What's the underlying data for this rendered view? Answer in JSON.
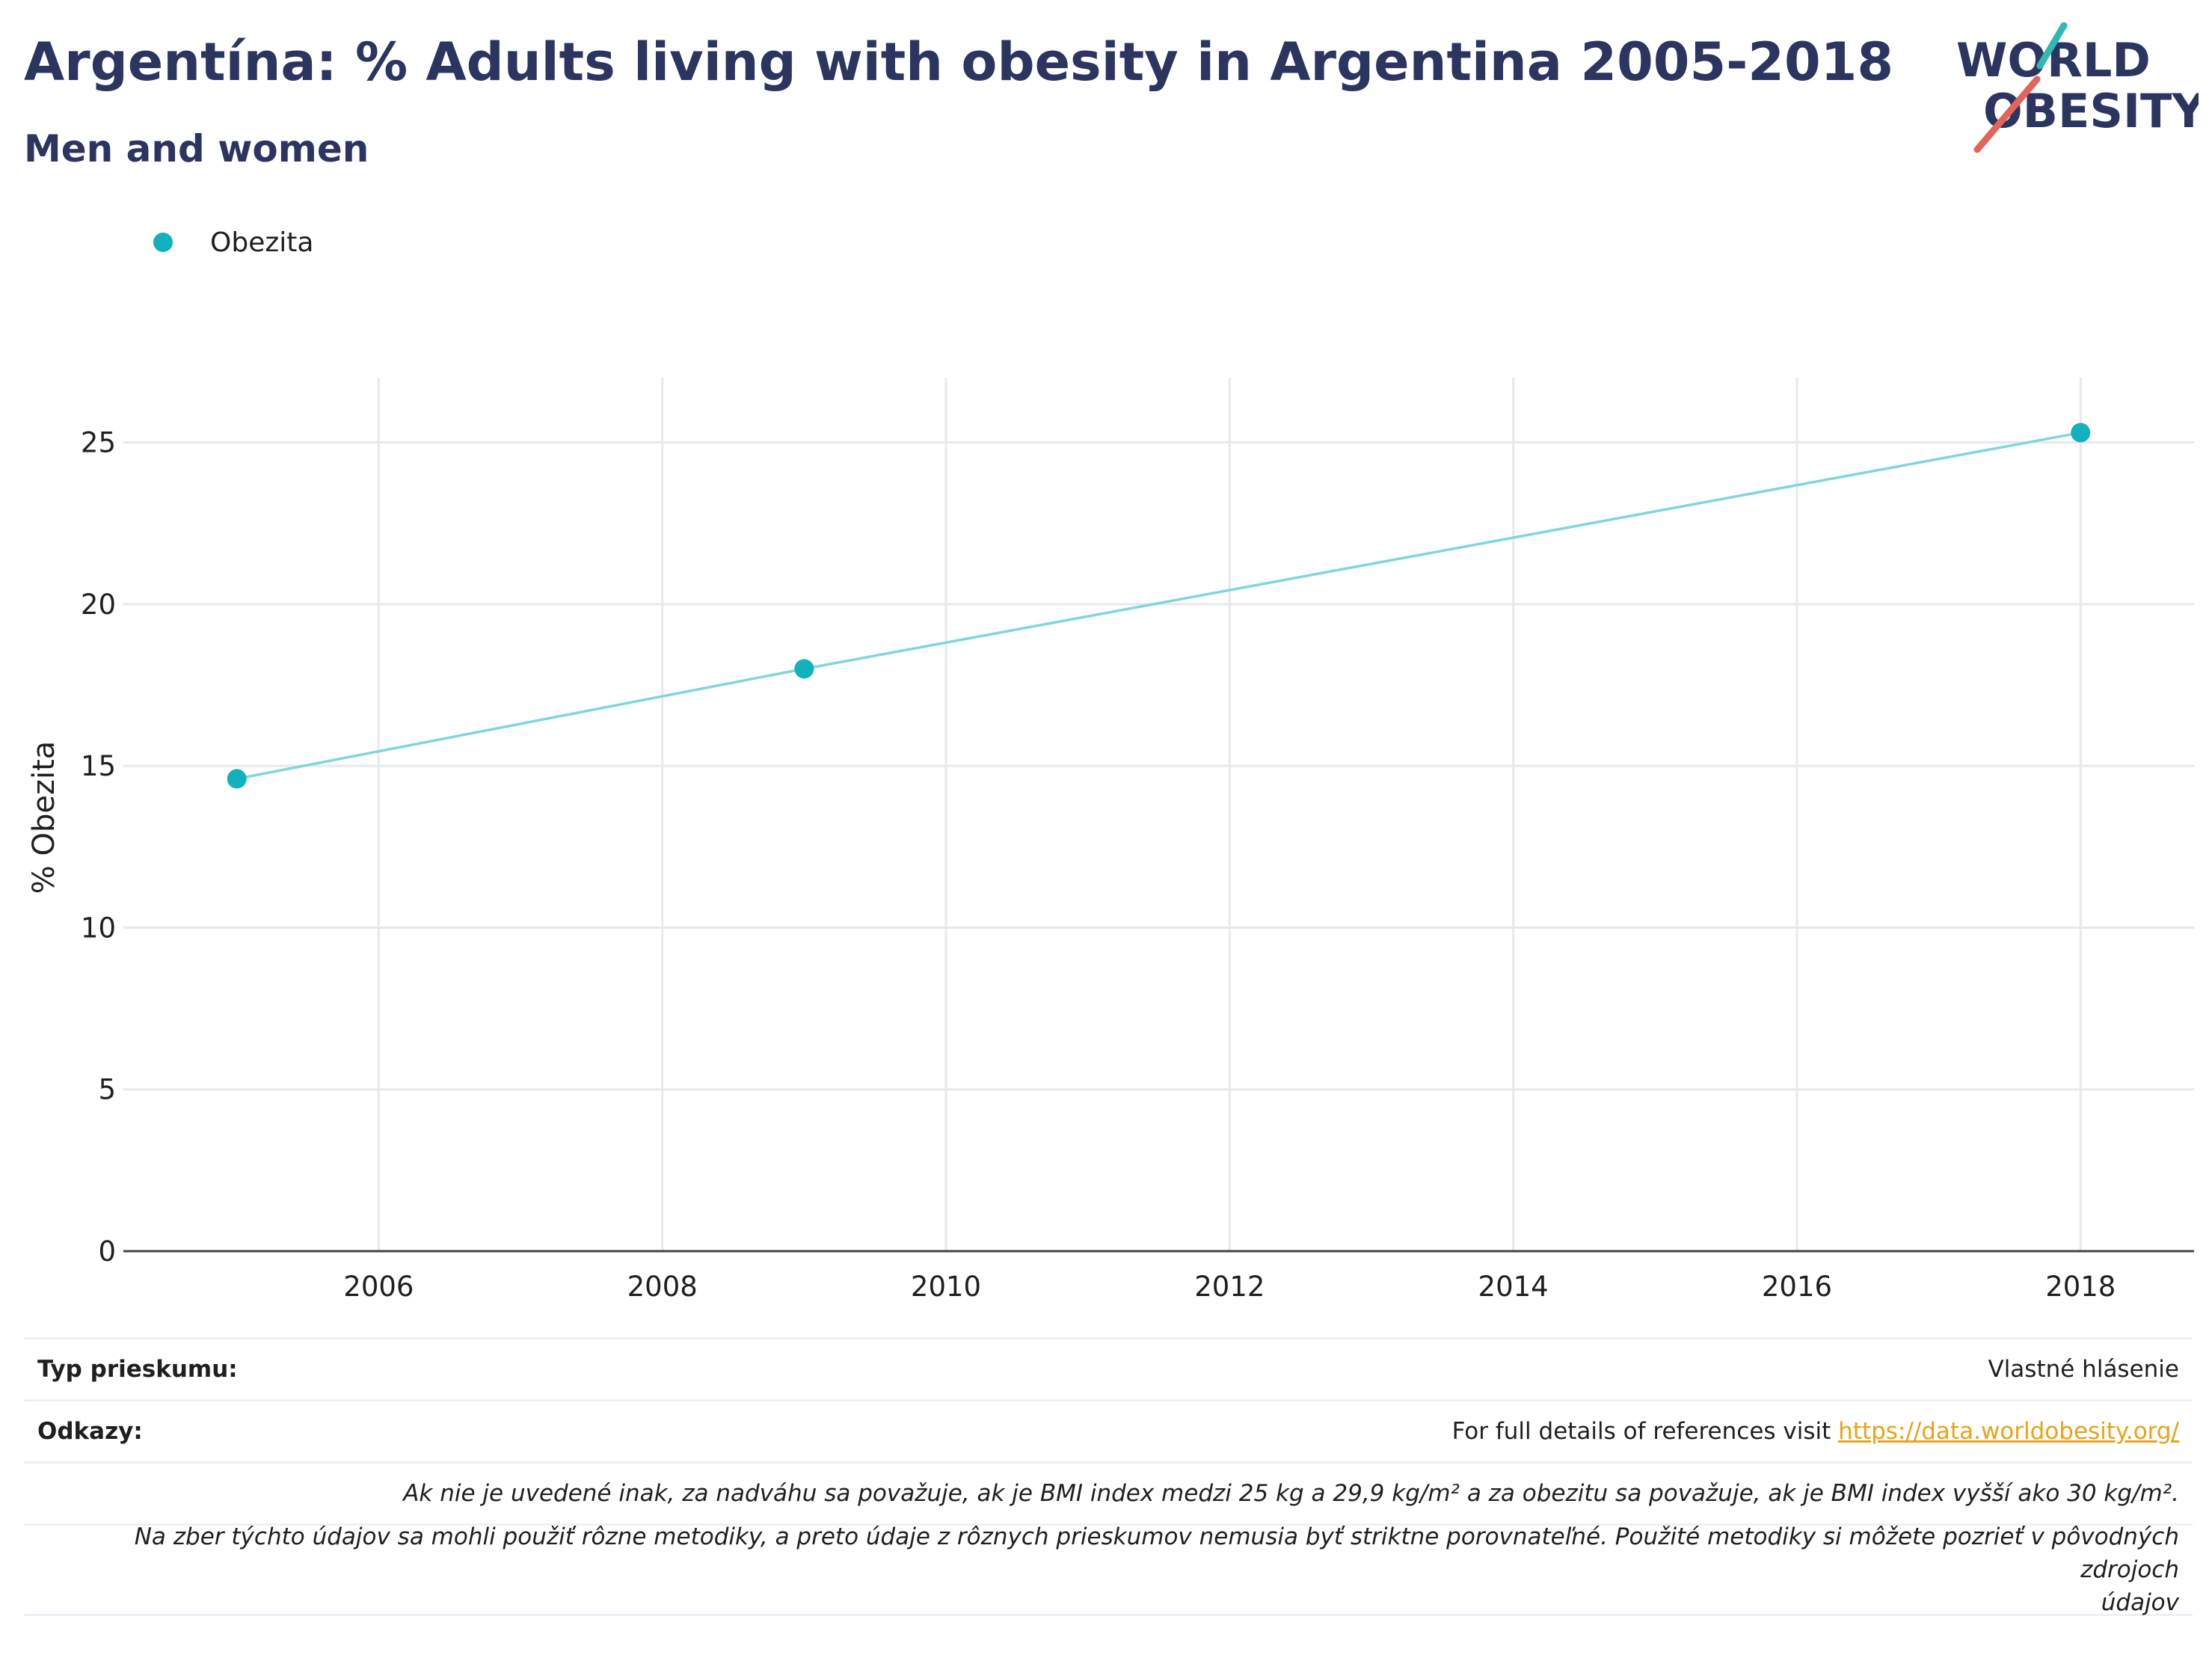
{
  "header": {
    "title": "Argentína: % Adults living with obesity in Argentina 2005-2018",
    "subtitle": "Men and women"
  },
  "logo": {
    "line1": "WORLD",
    "line2": "OBESITY"
  },
  "legend": {
    "label": "Obezita"
  },
  "colors": {
    "marker": "#13b1bd",
    "line": "#7fd6dc",
    "title": "#2b3560",
    "link": "#e8a317",
    "slash_teal": "#2fb9b1",
    "slash_red": "#e2655a"
  },
  "chart_data": {
    "type": "line",
    "title": "Argentína: % Adults living with obesity in Argentina 2005-2018",
    "subtitle": "Men and women",
    "xlabel": "",
    "ylabel": "% Obezita",
    "x_ticks": [
      "2006",
      "2008",
      "2010",
      "2012",
      "2014",
      "2016",
      "2018"
    ],
    "y_ticks": [
      "0",
      "5",
      "10",
      "15",
      "20",
      "25"
    ],
    "xlim": [
      2004.2,
      2018.8
    ],
    "ylim": [
      0,
      27
    ],
    "grid": true,
    "legend_position": "top-left",
    "series": [
      {
        "name": "Obezita",
        "x": [
          2005,
          2009,
          2018
        ],
        "y": [
          14.6,
          18.0,
          25.3
        ]
      }
    ]
  },
  "footer": {
    "survey_type_label": "Typ prieskumu:",
    "survey_type_value": "Vlastné hlásenie",
    "references_label": "Odkazy:",
    "references_text": "For full details of references visit ",
    "references_link": "https://data.worldobesity.org/",
    "note1": "Ak nie je uvedené inak, za nadváhu sa považuje, ak je BMI index medzi 25 kg a 29,9 kg/m² a za obezitu sa považuje, ak je BMI index vyšší ako 30 kg/m².",
    "note2_line1": "Na zber týchto údajov sa mohli použiť rôzne metodiky, a preto údaje z rôznych prieskumov nemusia byť striktne porovnateľné. Použité metodiky si môžete pozrieť v pôvodných zdrojoch",
    "note2_line2": "údajov"
  }
}
